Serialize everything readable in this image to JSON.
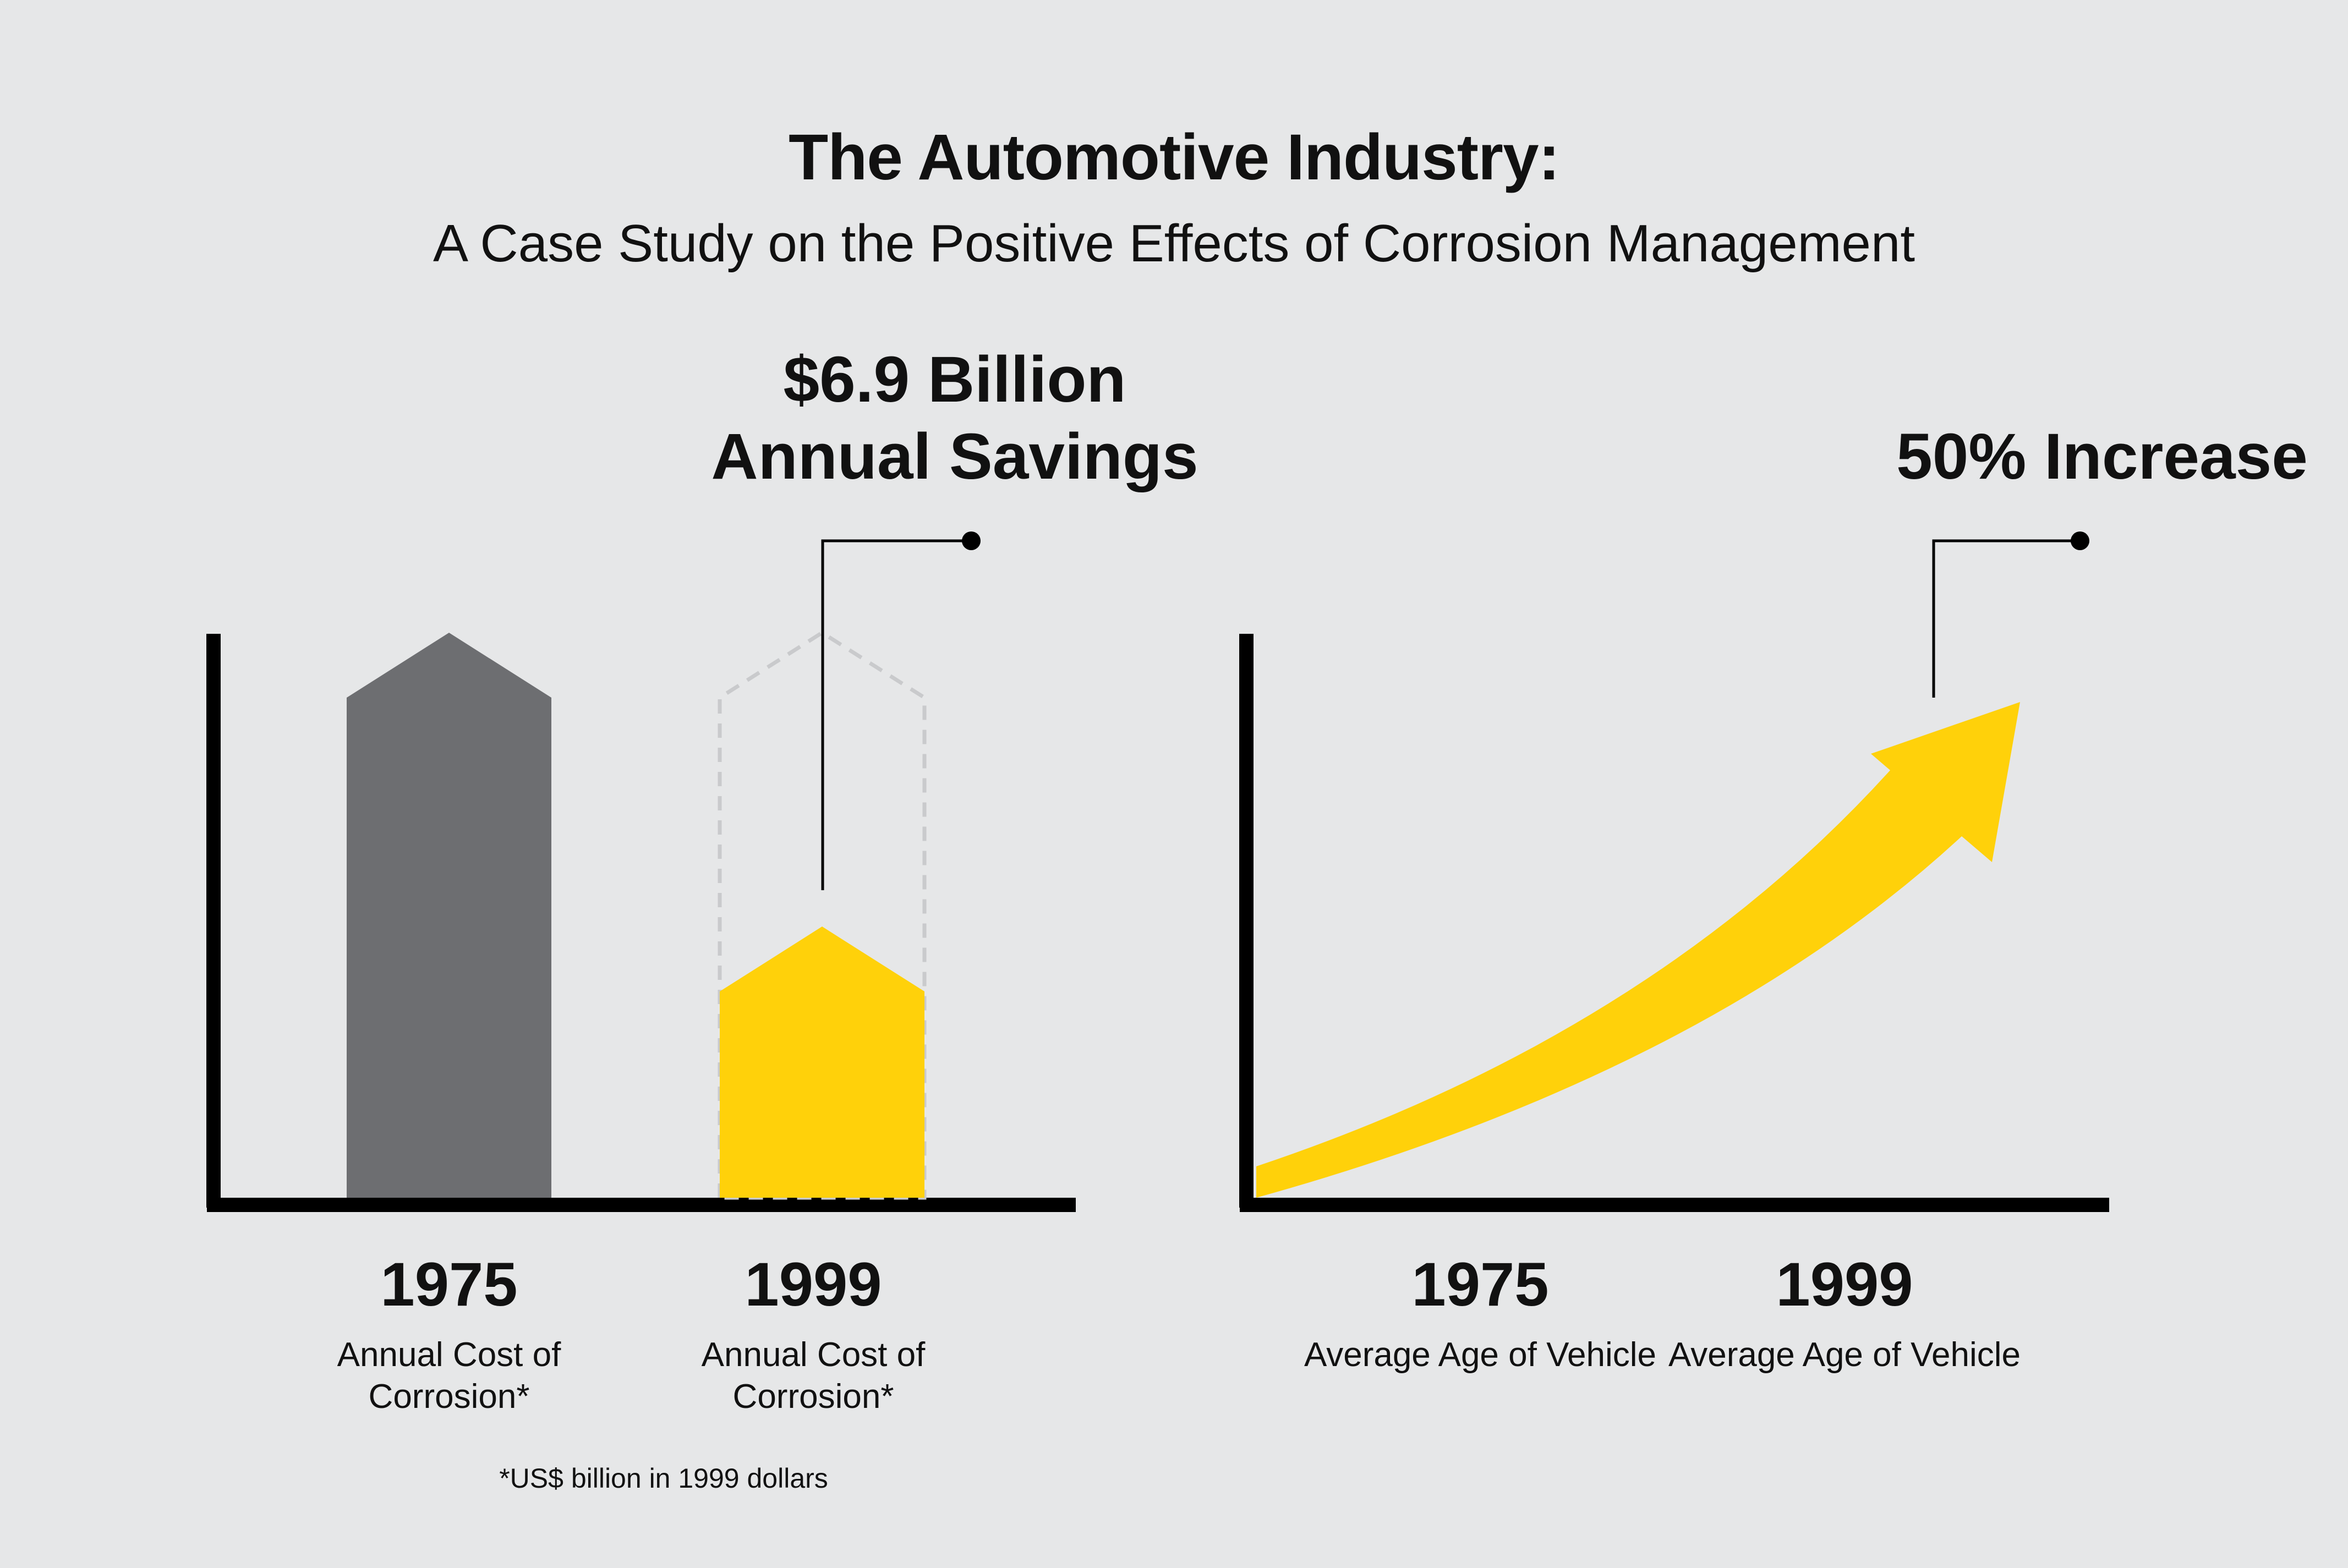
{
  "header": {
    "title": "The Automotive Industry:",
    "subtitle": "A Case Study on the Positive Effects of Corrosion Management"
  },
  "colors": {
    "background": "#e6e7e8",
    "gray_bar": "#6d6e71",
    "yellow": "#ffd10a",
    "axis": "#000000",
    "dashed_outline": "#c9cacc"
  },
  "chart_data": [
    {
      "type": "bar",
      "title": "",
      "categories": [
        "1975",
        "1999"
      ],
      "category_captions": [
        "Annual Cost of Corrosion*",
        "Annual Cost of Corrosion*"
      ],
      "annotation": {
        "line1": "$6.9 Billion",
        "line2": "Annual Savings"
      },
      "relative_values": [
        1.0,
        0.48
      ],
      "footnote": "*US$ billion in 1999 dollars"
    },
    {
      "type": "line",
      "title": "",
      "categories": [
        "1975",
        "1999"
      ],
      "category_captions": [
        "Average Age of Vehicle",
        "Average Age of Vehicle"
      ],
      "annotation": "50% Increase"
    }
  ]
}
